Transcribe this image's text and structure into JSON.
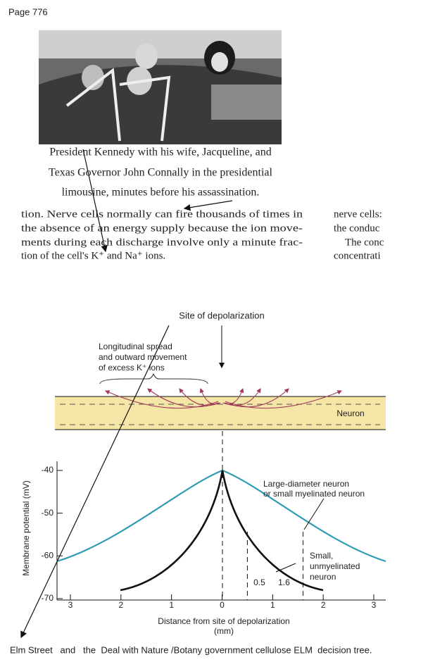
{
  "header": {
    "page": "Page 776"
  },
  "photo": {
    "caption": [
      "President Kennedy with his wife, Jacqueline, and",
      "Texas Governor John Connally in the presidential",
      "limousine, minutes before his assassination."
    ]
  },
  "body": {
    "left": [
      "tion. Nerve cells normally can fire thousands of times in",
      "the absence of an energy supply because the ion move-",
      "ments during each discharge involve only a minute frac-",
      "tion of the cell's K⁺ and Na⁺ ions."
    ],
    "right": [
      "nerve cells:",
      "the conduc",
      "The conc",
      "concentrati"
    ]
  },
  "figure": {
    "site_label": "Site of depolarization",
    "spread_label": [
      "Longitudinal spread",
      "and outward movement",
      "of excess K⁺ ions"
    ],
    "neuron_label": "Neuron",
    "large_label": [
      "Large-diameter neuron",
      "or small myelinated neuron"
    ],
    "small_label": [
      "Small,",
      "unmyelinated",
      "neuron"
    ],
    "y_title": "Membrane potential (mV)",
    "x_title": [
      "Distance from site of depolarization",
      "(mm)"
    ],
    "ylim": [
      -70,
      -40
    ],
    "yticks": [
      -40,
      -50,
      -60,
      -70
    ],
    "xlim": [
      -3,
      3
    ],
    "xticks": [
      {
        "value": -3,
        "label": "3"
      },
      {
        "value": -2,
        "label": "2"
      },
      {
        "value": -1,
        "label": "1"
      },
      0,
      1,
      2,
      3
    ],
    "markers": [
      0.5,
      1.6
    ]
  },
  "footer": {
    "text": "Elm Street   and   the  Deal with Nature /Botany government cellulose ELM  decision tree."
  }
}
